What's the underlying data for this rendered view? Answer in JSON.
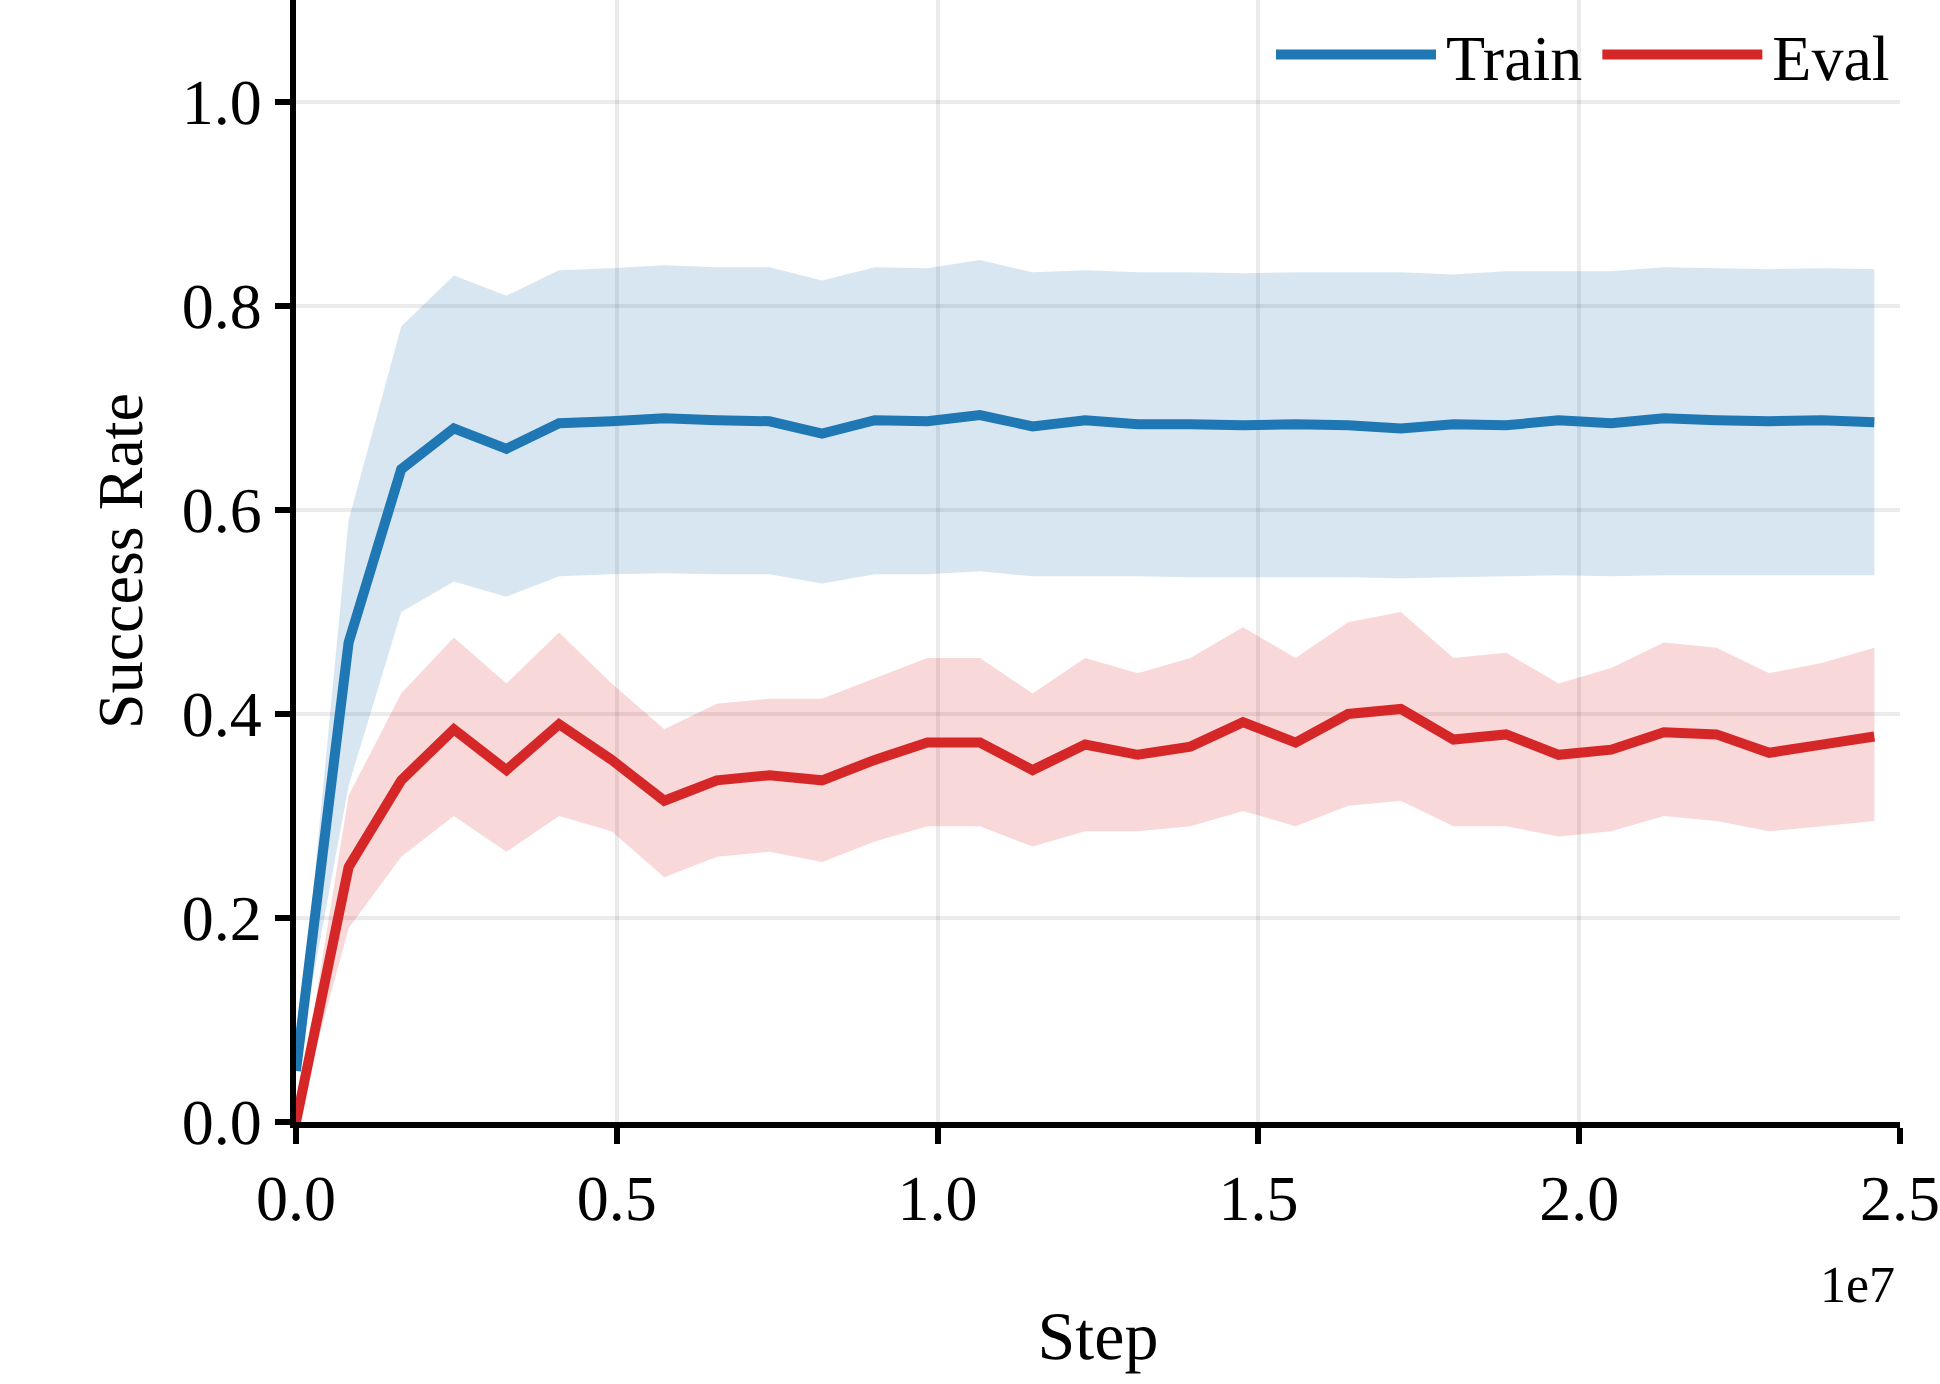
{
  "chart_data": {
    "type": "line",
    "xlabel": "Step",
    "ylabel": "Success Rate",
    "annotations": [
      "1e7"
    ],
    "x": [
      0,
      0.082,
      0.164,
      0.246,
      0.328,
      0.41,
      0.492,
      0.574,
      0.656,
      0.738,
      0.82,
      0.902,
      0.984,
      1.066,
      1.148,
      1.23,
      1.312,
      1.394,
      1.476,
      1.558,
      1.64,
      1.722,
      1.804,
      1.886,
      1.968,
      2.05,
      2.132,
      2.214,
      2.296,
      2.378,
      2.46
    ],
    "series": [
      {
        "name": "Train",
        "color": "#1f77b4",
        "values": [
          0.05,
          0.47,
          0.64,
          0.68,
          0.66,
          0.685,
          0.687,
          0.69,
          0.688,
          0.687,
          0.675,
          0.688,
          0.687,
          0.693,
          0.682,
          0.688,
          0.684,
          0.684,
          0.683,
          0.684,
          0.683,
          0.68,
          0.684,
          0.683,
          0.688,
          0.685,
          0.69,
          0.688,
          0.687,
          0.688,
          0.686
        ],
        "upper": [
          0.05,
          0.59,
          0.78,
          0.83,
          0.81,
          0.835,
          0.837,
          0.84,
          0.838,
          0.838,
          0.825,
          0.838,
          0.837,
          0.845,
          0.833,
          0.835,
          0.833,
          0.833,
          0.832,
          0.833,
          0.833,
          0.833,
          0.831,
          0.834,
          0.834,
          0.834,
          0.838,
          0.837,
          0.836,
          0.837,
          0.836
        ],
        "lower": [
          0.05,
          0.33,
          0.5,
          0.53,
          0.515,
          0.535,
          0.537,
          0.538,
          0.537,
          0.537,
          0.528,
          0.537,
          0.537,
          0.54,
          0.535,
          0.535,
          0.535,
          0.534,
          0.534,
          0.534,
          0.534,
          0.533,
          0.534,
          0.535,
          0.536,
          0.535,
          0.536,
          0.536,
          0.536,
          0.536,
          0.536
        ]
      },
      {
        "name": "Eval",
        "color": "#d62728",
        "values": [
          0.0,
          0.25,
          0.335,
          0.385,
          0.345,
          0.39,
          0.355,
          0.315,
          0.335,
          0.34,
          0.335,
          0.355,
          0.372,
          0.372,
          0.345,
          0.37,
          0.36,
          0.368,
          0.392,
          0.372,
          0.4,
          0.405,
          0.375,
          0.38,
          0.36,
          0.365,
          0.382,
          0.38,
          0.362,
          0.37,
          0.378
        ],
        "upper": [
          0.0,
          0.32,
          0.42,
          0.475,
          0.43,
          0.48,
          0.43,
          0.385,
          0.41,
          0.415,
          0.415,
          0.435,
          0.455,
          0.455,
          0.42,
          0.455,
          0.44,
          0.455,
          0.485,
          0.455,
          0.49,
          0.5,
          0.455,
          0.46,
          0.43,
          0.445,
          0.47,
          0.465,
          0.44,
          0.45,
          0.465
        ],
        "lower": [
          0.0,
          0.19,
          0.26,
          0.3,
          0.265,
          0.3,
          0.285,
          0.24,
          0.26,
          0.265,
          0.255,
          0.275,
          0.29,
          0.29,
          0.27,
          0.285,
          0.285,
          0.29,
          0.305,
          0.29,
          0.31,
          0.315,
          0.29,
          0.29,
          0.28,
          0.285,
          0.3,
          0.295,
          0.285,
          0.29,
          0.295
        ]
      }
    ],
    "xlim": [
      0,
      2.5
    ],
    "xticks": [
      {
        "value": 0,
        "label": "0.0"
      },
      0.5,
      {
        "value": 1,
        "label": "1.0"
      },
      1.5,
      {
        "value": 2,
        "label": "2.0"
      },
      2.5
    ],
    "ylim": [
      0,
      1.1
    ],
    "yticks": [
      {
        "value": 0,
        "label": "0.0"
      },
      {
        "value": 0.2,
        "label": "0.2"
      },
      {
        "value": 0.4,
        "label": "0.4"
      },
      {
        "value": 0.6,
        "label": "0.6"
      },
      {
        "value": 0.8,
        "label": "0.8"
      },
      {
        "value": 1.0,
        "label": "1.0"
      }
    ],
    "grid": true,
    "legend": "top right",
    "line_style": "solid"
  }
}
